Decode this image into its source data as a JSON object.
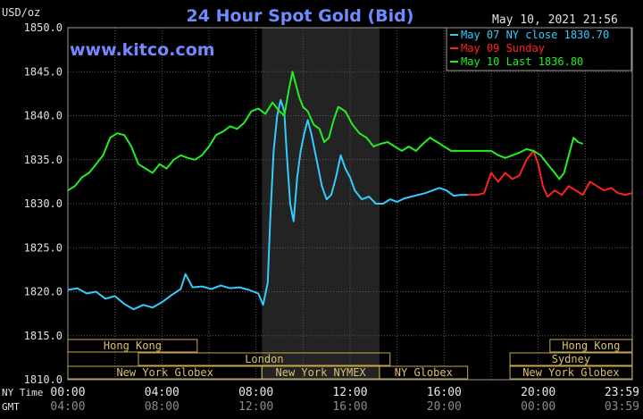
{
  "chart_data": {
    "type": "line",
    "title": "24 Hour Spot Gold (Bid)",
    "ylabel": "USD/oz",
    "timestamp": "May 10, 2021 21:56",
    "watermark": "www.kitco.com",
    "ylim": [
      1810,
      1850
    ],
    "y_ticks": [
      "1810.0",
      "1815.0",
      "1820.0",
      "1825.0",
      "1830.0",
      "1835.0",
      "1840.0",
      "1845.0",
      "1850.0"
    ],
    "x_ticks_ny": [
      "00:00",
      "04:00",
      "08:00",
      "12:00",
      "16:00",
      "20:00",
      "23:59"
    ],
    "x_ticks_gmt": [
      "04:00",
      "08:00",
      "12:00",
      "16:00",
      "20:00",
      "00:00",
      "03:59"
    ],
    "x_row_labels": {
      "ny": "NY Time",
      "gmt": "GMT"
    },
    "grid": true,
    "legend_position": "top-right",
    "highlight_range_hours": [
      8.25,
      13.25
    ],
    "markets": [
      {
        "name": "Hong Kong",
        "row": 1,
        "start": 0,
        "end": 5.5
      },
      {
        "name": "London",
        "row": 2,
        "start": 3.0,
        "end": 13.7
      },
      {
        "name": "New York Globex",
        "row": 3,
        "start": 0,
        "end": 8.25
      },
      {
        "name": "New York NYMEX",
        "row": 3,
        "start": 8.25,
        "end": 13.25
      },
      {
        "name": "NY Globex",
        "row": 3,
        "start": 13.25,
        "end": 17.0
      },
      {
        "name": "Hong Kong",
        "row": 1,
        "start": 20.5,
        "end": 23.99
      },
      {
        "name": "Sydney",
        "row": 2,
        "start": 18.8,
        "end": 23.99
      },
      {
        "name": "New York Globex",
        "row": 3,
        "start": 18.8,
        "end": 23.99
      }
    ],
    "series": [
      {
        "name": "May 07 NY close 1830.70",
        "color": "#33ccff",
        "points": [
          [
            0,
            1820.2
          ],
          [
            0.4,
            1820.4
          ],
          [
            0.8,
            1819.8
          ],
          [
            1.2,
            1820.0
          ],
          [
            1.6,
            1819.2
          ],
          [
            2.0,
            1819.5
          ],
          [
            2.4,
            1818.6
          ],
          [
            2.8,
            1818.0
          ],
          [
            3.2,
            1818.5
          ],
          [
            3.6,
            1818.2
          ],
          [
            4.0,
            1818.8
          ],
          [
            4.4,
            1819.6
          ],
          [
            4.8,
            1820.3
          ],
          [
            5.0,
            1822.0
          ],
          [
            5.3,
            1820.5
          ],
          [
            5.7,
            1820.6
          ],
          [
            6.1,
            1820.3
          ],
          [
            6.5,
            1820.7
          ],
          [
            6.9,
            1820.4
          ],
          [
            7.3,
            1820.5
          ],
          [
            7.7,
            1820.2
          ],
          [
            8.1,
            1819.8
          ],
          [
            8.3,
            1818.5
          ],
          [
            8.5,
            1821.0
          ],
          [
            8.6,
            1828.0
          ],
          [
            8.75,
            1836.0
          ],
          [
            8.9,
            1840.0
          ],
          [
            9.05,
            1841.8
          ],
          [
            9.2,
            1840.5
          ],
          [
            9.3,
            1836.0
          ],
          [
            9.45,
            1830.0
          ],
          [
            9.6,
            1828.0
          ],
          [
            9.75,
            1833.0
          ],
          [
            9.9,
            1836.0
          ],
          [
            10.05,
            1838.0
          ],
          [
            10.2,
            1839.5
          ],
          [
            10.35,
            1838.0
          ],
          [
            10.5,
            1836.0
          ],
          [
            10.65,
            1834.0
          ],
          [
            10.8,
            1832.0
          ],
          [
            11.0,
            1830.5
          ],
          [
            11.2,
            1831.0
          ],
          [
            11.4,
            1833.0
          ],
          [
            11.6,
            1835.5
          ],
          [
            11.8,
            1834.0
          ],
          [
            12.0,
            1833.0
          ],
          [
            12.2,
            1831.5
          ],
          [
            12.5,
            1830.5
          ],
          [
            12.8,
            1830.8
          ],
          [
            13.1,
            1830.0
          ],
          [
            13.4,
            1830.0
          ],
          [
            13.7,
            1830.5
          ],
          [
            14.0,
            1830.2
          ],
          [
            14.3,
            1830.6
          ],
          [
            14.6,
            1830.8
          ],
          [
            14.9,
            1831.0
          ],
          [
            15.2,
            1831.2
          ],
          [
            15.5,
            1831.5
          ],
          [
            15.8,
            1831.8
          ],
          [
            16.1,
            1831.5
          ],
          [
            16.4,
            1830.9
          ],
          [
            16.7,
            1831.0
          ],
          [
            17.0,
            1831.0
          ]
        ]
      },
      {
        "name": "May 09 Sunday",
        "color": "#ff2222",
        "points": [
          [
            17.0,
            1831.0
          ],
          [
            17.4,
            1831.0
          ],
          [
            17.7,
            1831.2
          ],
          [
            18.0,
            1833.5
          ],
          [
            18.3,
            1832.5
          ],
          [
            18.6,
            1833.5
          ],
          [
            18.9,
            1832.8
          ],
          [
            19.2,
            1833.2
          ],
          [
            19.5,
            1835.0
          ],
          [
            19.8,
            1836.0
          ],
          [
            20.0,
            1834.5
          ],
          [
            20.2,
            1832.0
          ],
          [
            20.4,
            1830.8
          ],
          [
            20.7,
            1831.5
          ],
          [
            21.0,
            1831.0
          ],
          [
            21.3,
            1832.0
          ],
          [
            21.6,
            1831.5
          ],
          [
            21.9,
            1831.0
          ],
          [
            22.2,
            1832.5
          ],
          [
            22.5,
            1832.0
          ],
          [
            22.8,
            1831.5
          ],
          [
            23.1,
            1831.8
          ],
          [
            23.4,
            1831.2
          ],
          [
            23.7,
            1831.0
          ],
          [
            23.99,
            1831.2
          ]
        ]
      },
      {
        "name": "May 10 Last 1836.80",
        "color": "#22ee22",
        "points": [
          [
            0,
            1831.5
          ],
          [
            0.3,
            1832.0
          ],
          [
            0.6,
            1833.0
          ],
          [
            0.9,
            1833.5
          ],
          [
            1.2,
            1834.5
          ],
          [
            1.5,
            1835.5
          ],
          [
            1.8,
            1837.5
          ],
          [
            2.1,
            1838.0
          ],
          [
            2.4,
            1837.8
          ],
          [
            2.7,
            1836.5
          ],
          [
            3.0,
            1834.5
          ],
          [
            3.3,
            1834.0
          ],
          [
            3.6,
            1833.5
          ],
          [
            3.9,
            1834.5
          ],
          [
            4.2,
            1834.0
          ],
          [
            4.5,
            1835.0
          ],
          [
            4.8,
            1835.5
          ],
          [
            5.1,
            1835.2
          ],
          [
            5.4,
            1835.0
          ],
          [
            5.7,
            1835.5
          ],
          [
            6.0,
            1836.5
          ],
          [
            6.3,
            1837.8
          ],
          [
            6.6,
            1838.2
          ],
          [
            6.9,
            1838.8
          ],
          [
            7.2,
            1838.5
          ],
          [
            7.5,
            1839.2
          ],
          [
            7.8,
            1840.5
          ],
          [
            8.1,
            1840.8
          ],
          [
            8.4,
            1840.2
          ],
          [
            8.7,
            1841.5
          ],
          [
            9.0,
            1840.5
          ],
          [
            9.2,
            1840.0
          ],
          [
            9.4,
            1843.0
          ],
          [
            9.55,
            1845.0
          ],
          [
            9.7,
            1843.5
          ],
          [
            9.85,
            1842.0
          ],
          [
            10.0,
            1841.0
          ],
          [
            10.2,
            1840.5
          ],
          [
            10.45,
            1839.0
          ],
          [
            10.7,
            1838.5
          ],
          [
            10.9,
            1837.0
          ],
          [
            11.1,
            1837.5
          ],
          [
            11.3,
            1839.5
          ],
          [
            11.5,
            1841.0
          ],
          [
            11.8,
            1840.5
          ],
          [
            12.1,
            1839.0
          ],
          [
            12.4,
            1838.0
          ],
          [
            12.7,
            1837.5
          ],
          [
            13.0,
            1836.5
          ],
          [
            13.3,
            1836.8
          ],
          [
            13.6,
            1837.0
          ],
          [
            13.9,
            1836.5
          ],
          [
            14.2,
            1836.0
          ],
          [
            14.5,
            1836.5
          ],
          [
            14.8,
            1836.0
          ],
          [
            15.1,
            1836.8
          ],
          [
            15.4,
            1837.5
          ],
          [
            15.7,
            1837.0
          ],
          [
            16.0,
            1836.5
          ],
          [
            16.3,
            1836.0
          ],
          [
            16.6,
            1836.0
          ],
          [
            17.0,
            1836.0
          ],
          [
            17.5,
            1836.0
          ],
          [
            18.0,
            1836.0
          ],
          [
            18.3,
            1835.5
          ],
          [
            18.6,
            1835.2
          ],
          [
            18.9,
            1835.5
          ],
          [
            19.2,
            1835.8
          ],
          [
            19.5,
            1836.2
          ],
          [
            19.8,
            1836.0
          ],
          [
            20.1,
            1835.5
          ],
          [
            20.4,
            1834.5
          ],
          [
            20.7,
            1833.5
          ],
          [
            20.9,
            1832.8
          ],
          [
            21.1,
            1833.5
          ],
          [
            21.3,
            1835.5
          ],
          [
            21.5,
            1837.5
          ],
          [
            21.7,
            1837.0
          ],
          [
            21.9,
            1836.8
          ]
        ]
      }
    ]
  }
}
